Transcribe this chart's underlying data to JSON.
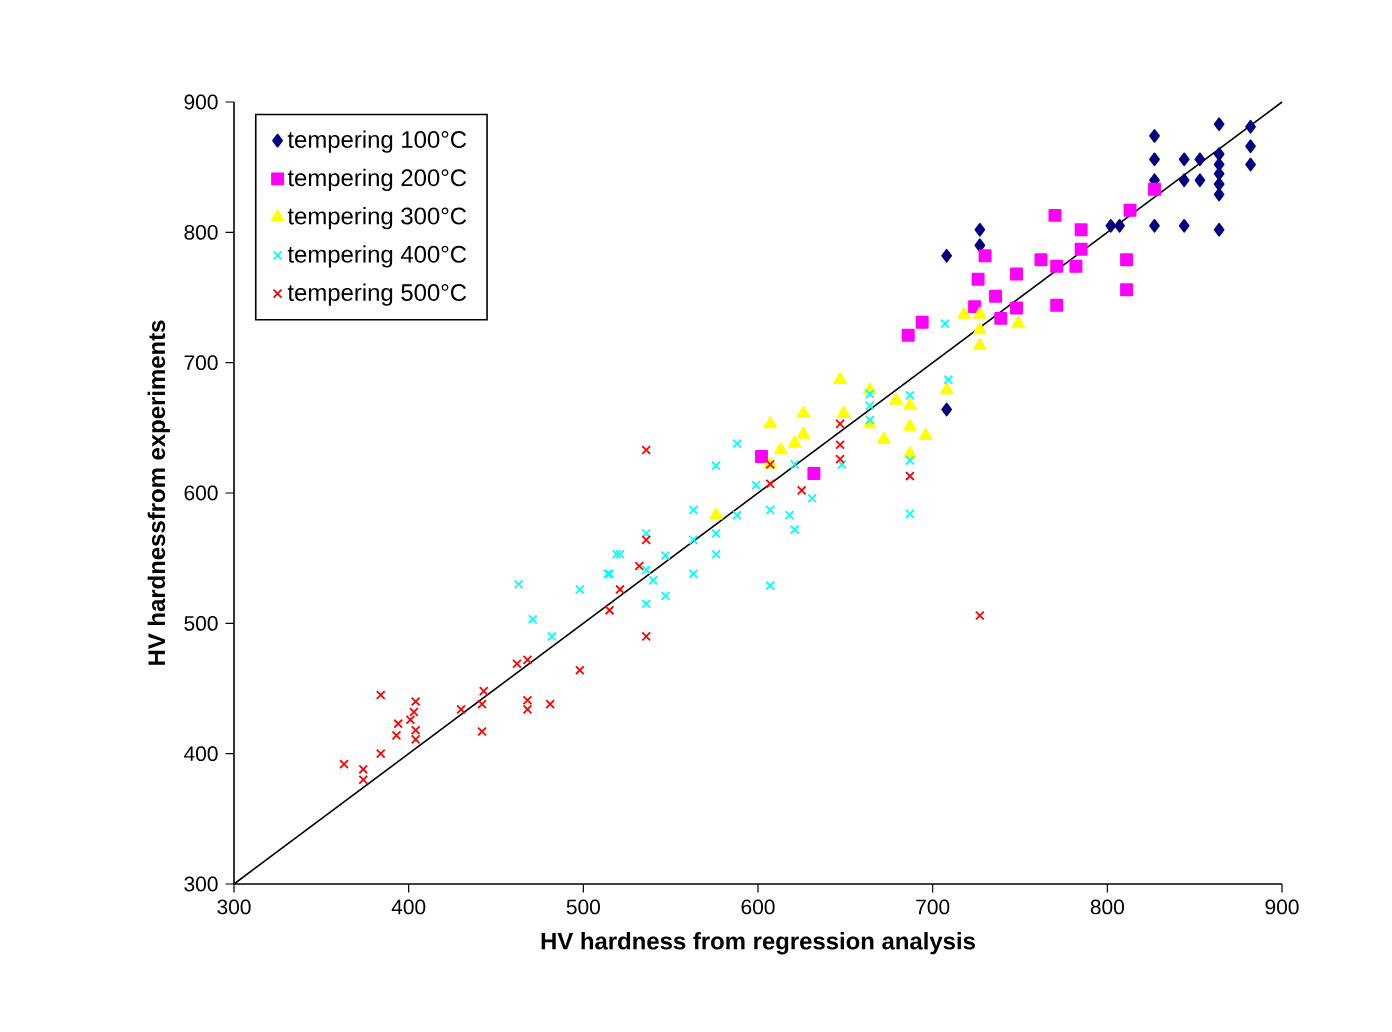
{
  "chart_data": {
    "type": "scatter",
    "xlabel": "HV hardness from regression analysis",
    "ylabel": "HV hardnessfrom experiments",
    "xlim": [
      300,
      900
    ],
    "ylim": [
      300,
      900
    ],
    "xticks": [
      300,
      400,
      500,
      600,
      700,
      800,
      900
    ],
    "yticks": [
      300,
      400,
      500,
      600,
      700,
      800,
      900
    ],
    "grid": false,
    "legend": "top left",
    "series": [
      {
        "name": "tempering 100°C",
        "color": "#000080",
        "marker": "diamond",
        "x": [
          864,
          864,
          864,
          864,
          864,
          864,
          864,
          882,
          882,
          882,
          827,
          827,
          827,
          827,
          844,
          844,
          844,
          853,
          853,
          807,
          802,
          727,
          727,
          708,
          708
        ],
        "values": [
          883,
          860,
          852,
          845,
          837,
          829,
          802,
          881,
          866,
          852,
          874,
          856,
          840,
          805,
          856,
          840,
          805,
          856,
          840,
          805,
          805,
          802,
          790,
          782,
          664
        ]
      },
      {
        "name": "tempering 200°C",
        "color": "#ff00ff",
        "marker": "square",
        "x": [
          602,
          632,
          726,
          724,
          736,
          739,
          748,
          748,
          771,
          771,
          782,
          811,
          811,
          770,
          813,
          827,
          785,
          785,
          686,
          694,
          762,
          730
        ],
        "values": [
          628,
          615,
          764,
          743,
          751,
          734,
          768,
          742,
          774,
          744,
          774,
          779,
          756,
          813,
          817,
          833,
          787,
          802,
          721,
          731,
          779,
          782
        ]
      },
      {
        "name": "tempering 300°C",
        "color": "#ffff00",
        "marker": "triangle",
        "x": [
          607,
          607,
          613,
          621,
          626,
          626,
          576,
          647,
          649,
          664,
          664,
          672,
          679,
          687,
          687,
          696,
          708,
          687,
          718,
          727,
          727,
          727,
          749
        ],
        "values": [
          653,
          622,
          633,
          638,
          661,
          645,
          583,
          687,
          661,
          679,
          653,
          641,
          671,
          667,
          651,
          644,
          679,
          630,
          737,
          737,
          725,
          713,
          730
        ]
      },
      {
        "name": "tempering 400°C",
        "color": "#00ffff",
        "marker": "cross",
        "x": [
          463,
          471,
          482,
          498,
          514,
          519,
          515,
          521,
          536,
          536,
          540,
          536,
          547,
          547,
          563,
          563,
          563,
          576,
          576,
          576,
          588,
          588,
          599,
          607,
          607,
          618,
          621,
          621,
          631,
          648,
          664,
          664,
          664,
          687,
          687,
          687,
          709,
          707
        ],
        "values": [
          530,
          503,
          490,
          526,
          538,
          553,
          538,
          553,
          569,
          541,
          533,
          515,
          552,
          521,
          587,
          564,
          538,
          621,
          569,
          553,
          638,
          583,
          606,
          587,
          529,
          583,
          572,
          622,
          596,
          622,
          676,
          667,
          656,
          625,
          584,
          675,
          687,
          730
        ]
      },
      {
        "name": "tempering 500°C",
        "color": "#ff0000",
        "marker": "cross",
        "x": [
          363,
          374,
          374,
          384,
          384,
          393,
          394,
          401,
          403,
          404,
          404,
          404,
          430,
          442,
          443,
          442,
          462,
          468,
          468,
          468,
          481,
          498,
          515,
          521,
          532,
          536,
          536,
          536,
          607,
          607,
          625,
          647,
          647,
          647,
          687,
          727
        ],
        "values": [
          392,
          388,
          380,
          400,
          445,
          414,
          423,
          426,
          432,
          418,
          440,
          411,
          434,
          438,
          448,
          417,
          469,
          472,
          434,
          441,
          438,
          464,
          510,
          526,
          544,
          564,
          633,
          490,
          622,
          607,
          602,
          626,
          637,
          653,
          613,
          506
        ]
      },
      {
        "type": "line",
        "color": "#000000",
        "marker": "none",
        "line_style": "solid",
        "x": [
          300,
          900
        ],
        "values": [
          300,
          900
        ]
      }
    ]
  }
}
